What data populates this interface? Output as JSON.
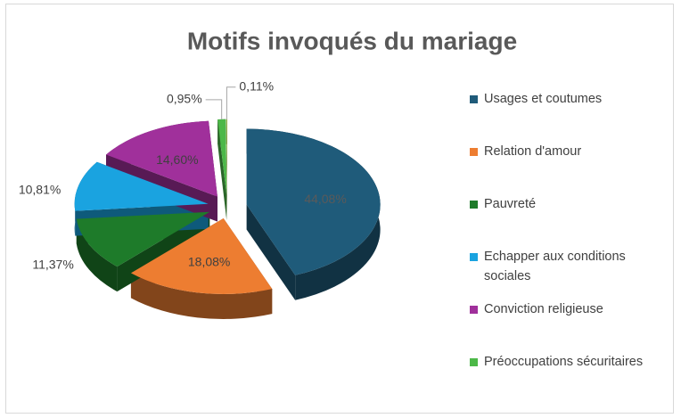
{
  "chart_data": {
    "type": "pie3d",
    "title": "Motifs invoqués du mariage",
    "categories": [
      "Usages et coutumes",
      "Relation d'amour",
      "Pauvreté",
      "Echapper aux conditions sociales",
      "Conviction religieuse",
      "Préoccupations sécuritaires",
      null
    ],
    "values": [
      44.08,
      18.08,
      11.37,
      10.81,
      14.6,
      0.95,
      0.11
    ],
    "value_labels": [
      "44,08%",
      "18,08%",
      "11,37%",
      "10,81%",
      "14,60%",
      "0,95%",
      "0,11%"
    ],
    "colors": [
      "#1f5b7a",
      "#ed7d31",
      "#1e7b2a",
      "#1aa3e0",
      "#a0309b",
      "#4cb848",
      "#8cb33f"
    ],
    "legend": "right"
  }
}
